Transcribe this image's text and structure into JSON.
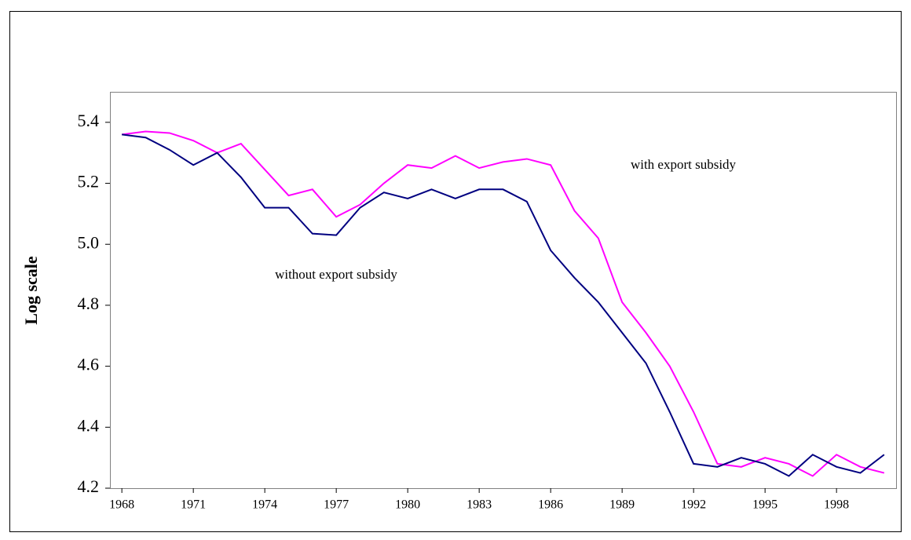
{
  "chart_data": {
    "type": "line",
    "ylabel": "Log scale",
    "x": [
      1968,
      1969,
      1970,
      1971,
      1972,
      1973,
      1974,
      1975,
      1976,
      1977,
      1978,
      1979,
      1980,
      1981,
      1982,
      1983,
      1984,
      1985,
      1986,
      1987,
      1988,
      1989,
      1990,
      1991,
      1992,
      1993,
      1994,
      1995,
      1996,
      1997,
      1998,
      1999,
      2000
    ],
    "series": [
      {
        "name": "with export subsidy",
        "color": "#ff00ff",
        "values": [
          5.36,
          5.37,
          5.365,
          5.34,
          5.3,
          5.33,
          5.245,
          5.16,
          5.18,
          5.09,
          5.13,
          5.2,
          5.26,
          5.25,
          5.29,
          5.25,
          5.27,
          5.28,
          5.26,
          5.11,
          5.02,
          4.81,
          4.71,
          4.6,
          4.45,
          4.28,
          4.27,
          4.3,
          4.28,
          4.24,
          4.31,
          4.27,
          4.25
        ]
      },
      {
        "name": "without export subsidy",
        "color": "#000080",
        "values": [
          5.36,
          5.35,
          5.31,
          5.26,
          5.3,
          5.22,
          5.12,
          5.12,
          5.035,
          5.03,
          5.12,
          5.17,
          5.15,
          5.18,
          5.15,
          5.18,
          5.18,
          5.14,
          4.98,
          4.89,
          4.81,
          4.71,
          4.61,
          4.45,
          4.28,
          4.27,
          4.3,
          4.28,
          4.24,
          4.31,
          4.27,
          4.25,
          4.31
        ]
      }
    ],
    "xlim": [
      1967.5,
      2000.5
    ],
    "xticks": [
      1968,
      1971,
      1974,
      1977,
      1980,
      1983,
      1986,
      1989,
      1992,
      1995,
      1998
    ],
    "ylim": [
      4.2,
      5.5
    ],
    "yticks": [
      4.2,
      4.4,
      4.6,
      4.8,
      {
        "value": 5,
        "label": "5.0"
      },
      5.2,
      5.4
    ]
  }
}
